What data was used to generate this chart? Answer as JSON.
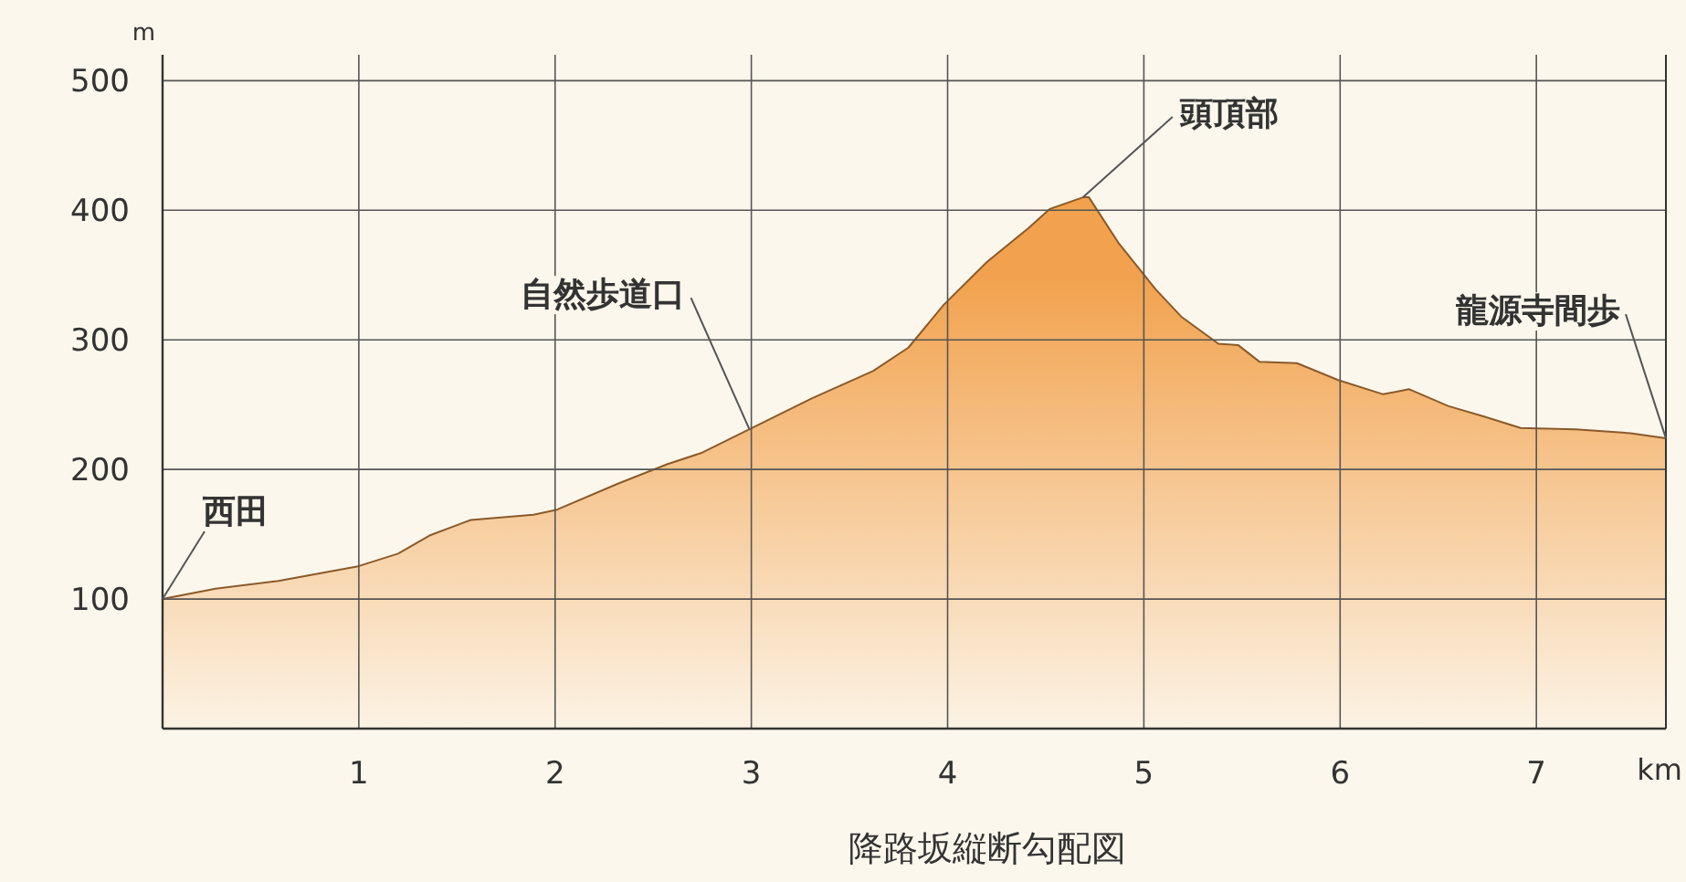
{
  "chart_data": {
    "type": "area",
    "title": "降路坂縦断勾配図",
    "xlabel": "km",
    "ylabel": "m",
    "x": [
      0,
      0.27,
      0.59,
      0.99,
      1.2,
      1.36,
      1.57,
      1.89,
      2.01,
      2.32,
      2.57,
      2.75,
      2.99,
      3.31,
      3.62,
      3.8,
      3.98,
      4.2,
      4.41,
      4.52,
      4.69,
      4.72,
      4.87,
      5.06,
      5.19,
      5.38,
      5.48,
      5.59,
      5.78,
      5.99,
      6.22,
      6.35,
      6.55,
      6.73,
      6.92,
      7.2,
      7.48,
      7.66
    ],
    "series": [
      {
        "color": "#f2a24e",
        "values": [
          100,
          108,
          114,
          125,
          135,
          149,
          161,
          165,
          169,
          189,
          204,
          213,
          231,
          255,
          276,
          294,
          327,
          360,
          386,
          401,
          410,
          410,
          375,
          339,
          318,
          297,
          296,
          283,
          282,
          269,
          258,
          262,
          249,
          241,
          232,
          231,
          228,
          224
        ]
      }
    ],
    "xlim": [
      0,
      7.66
    ],
    "xticks": [
      1,
      2,
      3,
      4,
      5,
      6,
      7
    ],
    "ylim": [
      0,
      520
    ],
    "yticks": [
      100,
      200,
      300,
      400,
      500
    ],
    "grid": true,
    "annotations": [
      {
        "text": "西田",
        "x": 0,
        "y": 100
      },
      {
        "text": "自然歩道口",
        "x": 2.99,
        "y": 231
      },
      {
        "text": "頭頂部",
        "x": 4.69,
        "y": 410
      },
      {
        "text": "龍源寺間歩",
        "x": 7.66,
        "y": 224
      }
    ]
  }
}
